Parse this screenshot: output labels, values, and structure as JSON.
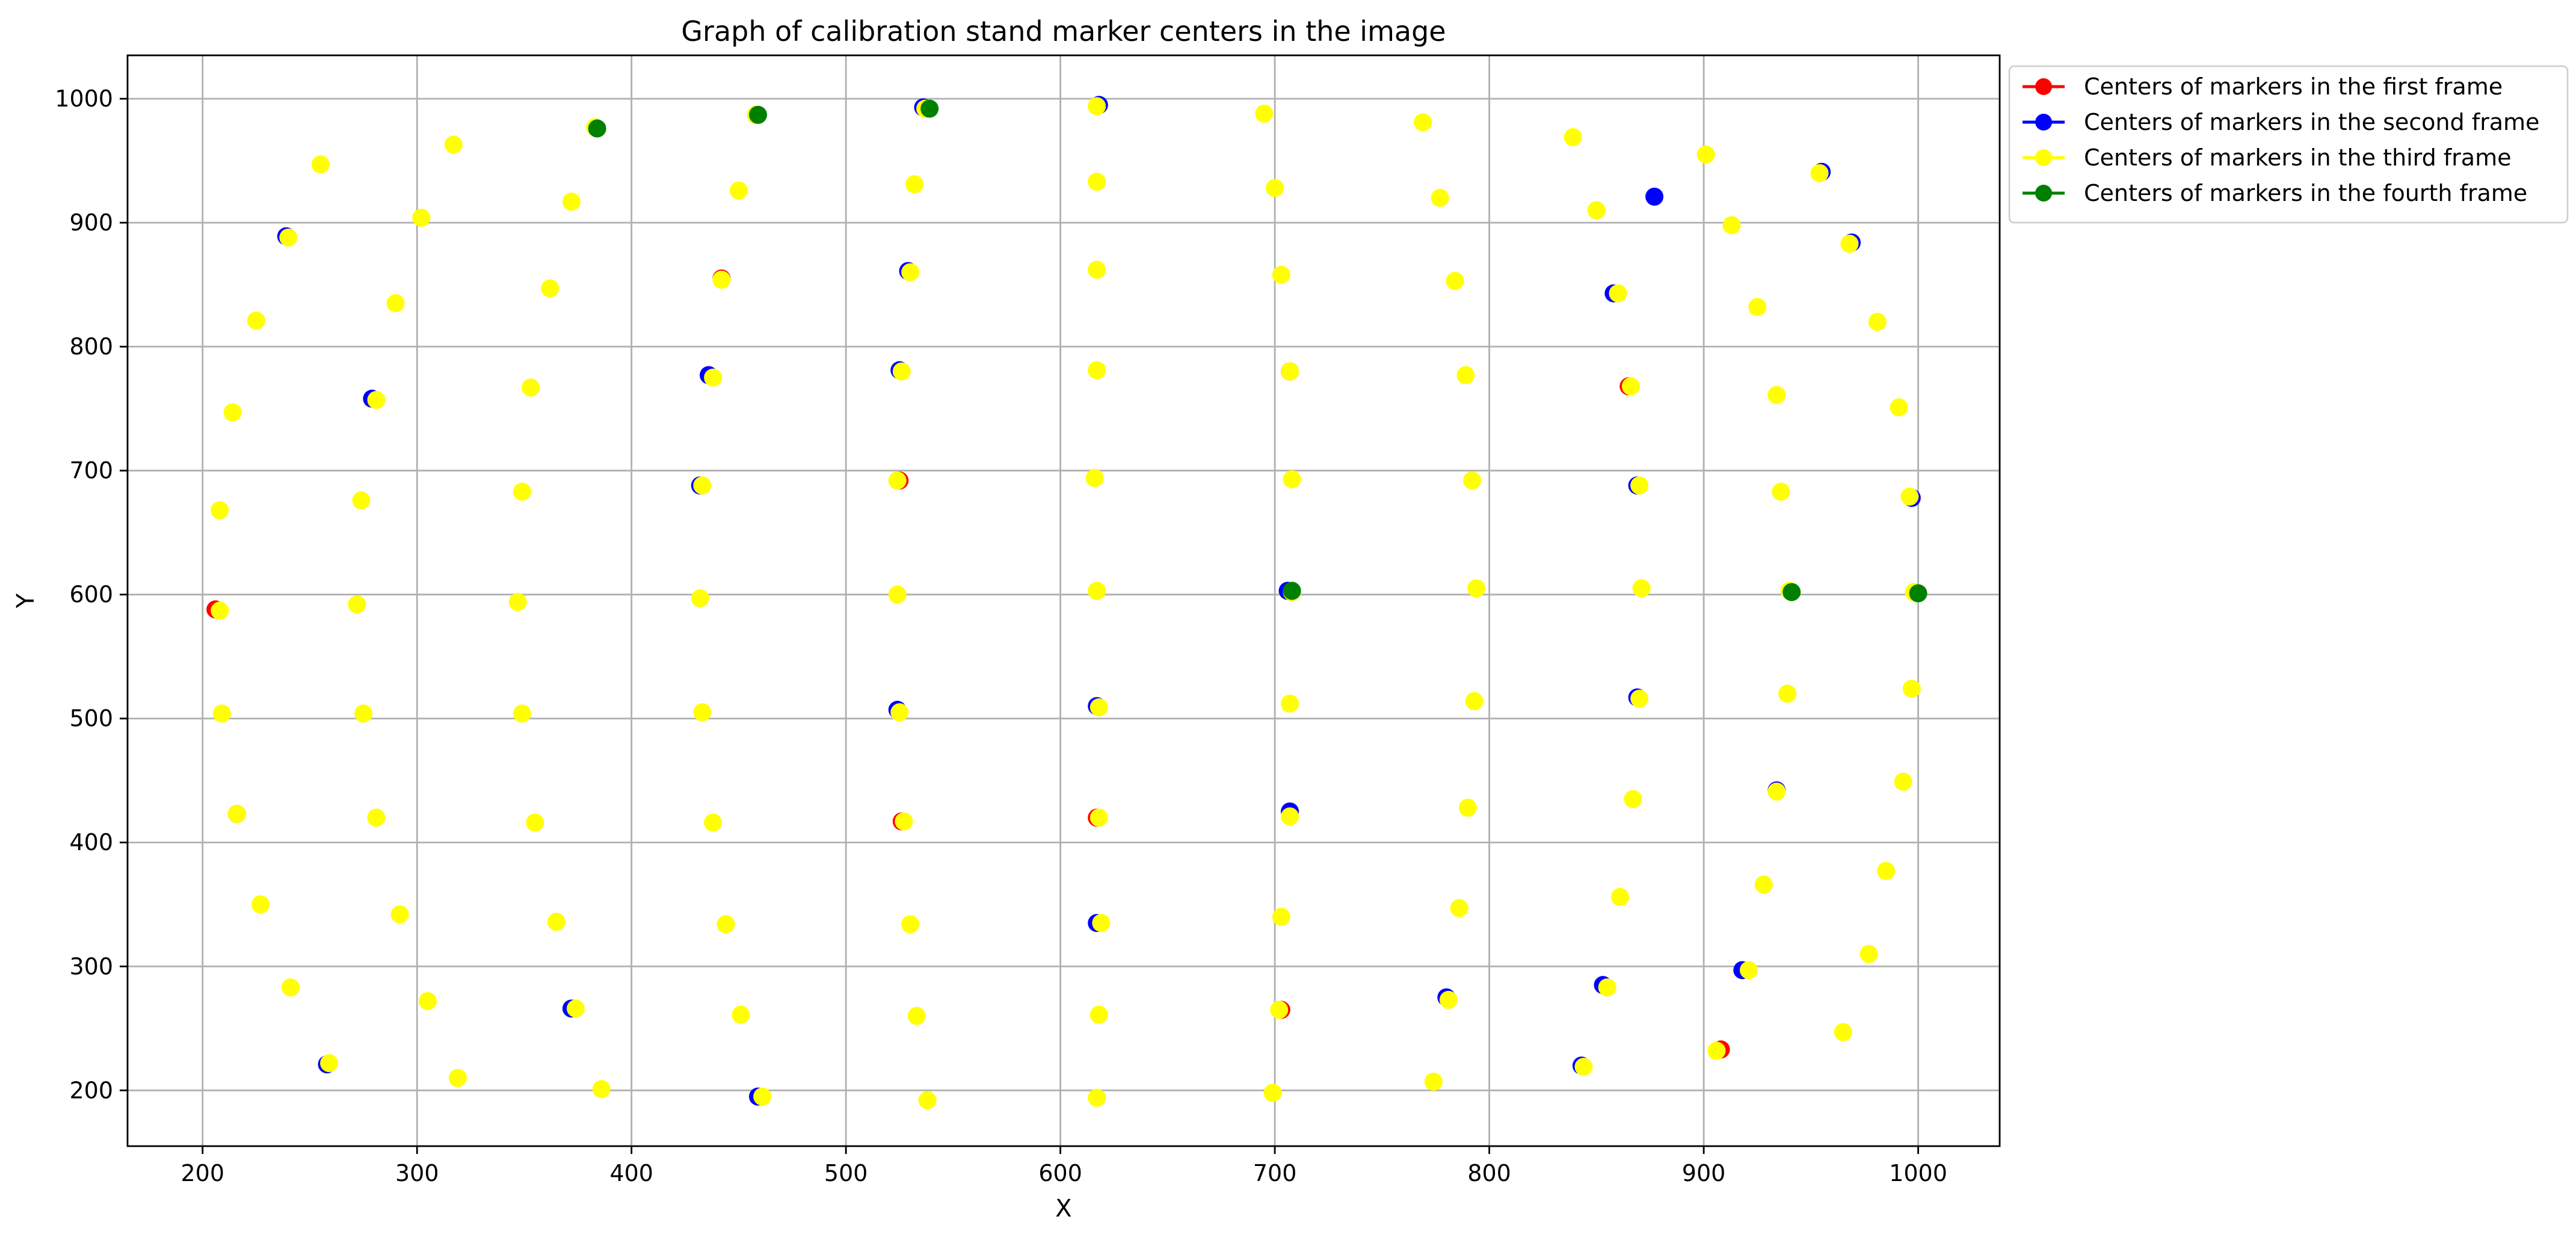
{
  "chart_data": {
    "type": "scatter",
    "title": "Graph of calibration stand marker centers in the image",
    "xlabel": "X",
    "ylabel": "Y",
    "xlim": [
      165,
      1038
    ],
    "ylim": [
      155,
      1035
    ],
    "xticks": [
      200,
      300,
      400,
      500,
      600,
      700,
      800,
      900,
      1000
    ],
    "yticks": [
      200,
      300,
      400,
      500,
      600,
      700,
      800,
      900,
      1000
    ],
    "grid": true,
    "legend_position": "outside-top-right",
    "series": [
      {
        "name": "Centers of markers in the first frame",
        "color": "#ff0000",
        "points": [
          [
            206,
            588
          ],
          [
            216,
            423
          ],
          [
            442,
            855
          ],
          [
            526,
            417
          ],
          [
            617,
            420
          ],
          [
            703,
            265
          ],
          [
            707,
            780
          ],
          [
            865,
            768
          ],
          [
            908,
            233
          ],
          [
            525,
            692
          ]
        ]
      },
      {
        "name": "Centers of markers in the second frame",
        "color": "#0000ff",
        "points": [
          [
            239,
            889
          ],
          [
            258,
            221
          ],
          [
            279,
            758
          ],
          [
            459,
            195
          ],
          [
            529,
            861
          ],
          [
            617,
            335
          ],
          [
            707,
            425
          ],
          [
            858,
            843
          ],
          [
            918,
            297
          ],
          [
            934,
            442
          ],
          [
            969,
            884
          ],
          [
            997,
            678
          ],
          [
            436,
            777
          ],
          [
            525,
            781
          ],
          [
            432,
            688
          ],
          [
            706,
            603
          ],
          [
            869,
            688
          ],
          [
            869,
            517
          ],
          [
            617,
            510
          ],
          [
            372,
            266
          ],
          [
            524,
            507
          ],
          [
            853,
            285
          ],
          [
            843,
            220
          ],
          [
            780,
            275
          ],
          [
            877,
            921
          ],
          [
            955,
            941
          ],
          [
            536,
            993
          ],
          [
            618,
            995
          ]
        ]
      },
      {
        "name": "Centers of markers in the third frame",
        "color": "#ffff00",
        "points": [
          [
            255,
            947
          ],
          [
            317,
            963
          ],
          [
            383,
            977
          ],
          [
            458,
            987
          ],
          [
            537,
            992
          ],
          [
            617,
            994
          ],
          [
            695,
            988
          ],
          [
            769,
            981
          ],
          [
            839,
            969
          ],
          [
            901,
            955
          ],
          [
            954,
            940
          ],
          [
            240,
            888
          ],
          [
            302,
            904
          ],
          [
            372,
            917
          ],
          [
            450,
            926
          ],
          [
            532,
            931
          ],
          [
            617,
            933
          ],
          [
            700,
            928
          ],
          [
            777,
            920
          ],
          [
            850,
            910
          ],
          [
            913,
            898
          ],
          [
            968,
            883
          ],
          [
            225,
            821
          ],
          [
            290,
            835
          ],
          [
            362,
            847
          ],
          [
            442,
            854
          ],
          [
            530,
            860
          ],
          [
            617,
            862
          ],
          [
            703,
            858
          ],
          [
            784,
            853
          ],
          [
            860,
            843
          ],
          [
            925,
            832
          ],
          [
            981,
            820
          ],
          [
            214,
            747
          ],
          [
            281,
            757
          ],
          [
            353,
            767
          ],
          [
            438,
            775
          ],
          [
            526,
            780
          ],
          [
            617,
            781
          ],
          [
            707,
            780
          ],
          [
            789,
            777
          ],
          [
            866,
            768
          ],
          [
            934,
            761
          ],
          [
            991,
            751
          ],
          [
            208,
            668
          ],
          [
            274,
            676
          ],
          [
            349,
            683
          ],
          [
            433,
            688
          ],
          [
            524,
            692
          ],
          [
            616,
            694
          ],
          [
            708,
            693
          ],
          [
            792,
            692
          ],
          [
            870,
            688
          ],
          [
            936,
            683
          ],
          [
            996,
            679
          ],
          [
            208,
            587
          ],
          [
            272,
            592
          ],
          [
            347,
            594
          ],
          [
            432,
            597
          ],
          [
            524,
            600
          ],
          [
            617,
            603
          ],
          [
            708,
            602
          ],
          [
            794,
            605
          ],
          [
            871,
            605
          ],
          [
            940,
            603
          ],
          [
            998,
            602
          ],
          [
            209,
            504
          ],
          [
            275,
            504
          ],
          [
            349,
            504
          ],
          [
            433,
            505
          ],
          [
            525,
            505
          ],
          [
            618,
            509
          ],
          [
            707,
            512
          ],
          [
            793,
            514
          ],
          [
            870,
            516
          ],
          [
            939,
            520
          ],
          [
            997,
            524
          ],
          [
            216,
            423
          ],
          [
            281,
            420
          ],
          [
            355,
            416
          ],
          [
            438,
            416
          ],
          [
            527,
            417
          ],
          [
            618,
            420
          ],
          [
            707,
            421
          ],
          [
            790,
            428
          ],
          [
            867,
            435
          ],
          [
            934,
            441
          ],
          [
            993,
            449
          ],
          [
            227,
            350
          ],
          [
            292,
            342
          ],
          [
            365,
            336
          ],
          [
            444,
            334
          ],
          [
            530,
            334
          ],
          [
            619,
            335
          ],
          [
            703,
            340
          ],
          [
            786,
            347
          ],
          [
            861,
            356
          ],
          [
            928,
            366
          ],
          [
            985,
            377
          ],
          [
            241,
            283
          ],
          [
            305,
            272
          ],
          [
            374,
            266
          ],
          [
            451,
            261
          ],
          [
            533,
            260
          ],
          [
            618,
            261
          ],
          [
            702,
            265
          ],
          [
            781,
            273
          ],
          [
            855,
            283
          ],
          [
            921,
            297
          ],
          [
            977,
            310
          ],
          [
            259,
            222
          ],
          [
            319,
            210
          ],
          [
            386,
            201
          ],
          [
            461,
            195
          ],
          [
            538,
            192
          ],
          [
            617,
            194
          ],
          [
            699,
            198
          ],
          [
            774,
            207
          ],
          [
            844,
            219
          ],
          [
            906,
            232
          ],
          [
            965,
            247
          ]
        ]
      },
      {
        "name": "Centers of markers in the fourth frame",
        "color": "#008000",
        "points": [
          [
            459,
            987
          ],
          [
            539,
            992
          ],
          [
            941,
            602
          ],
          [
            1000,
            601
          ],
          [
            384,
            976
          ],
          [
            708,
            603
          ]
        ]
      }
    ]
  }
}
